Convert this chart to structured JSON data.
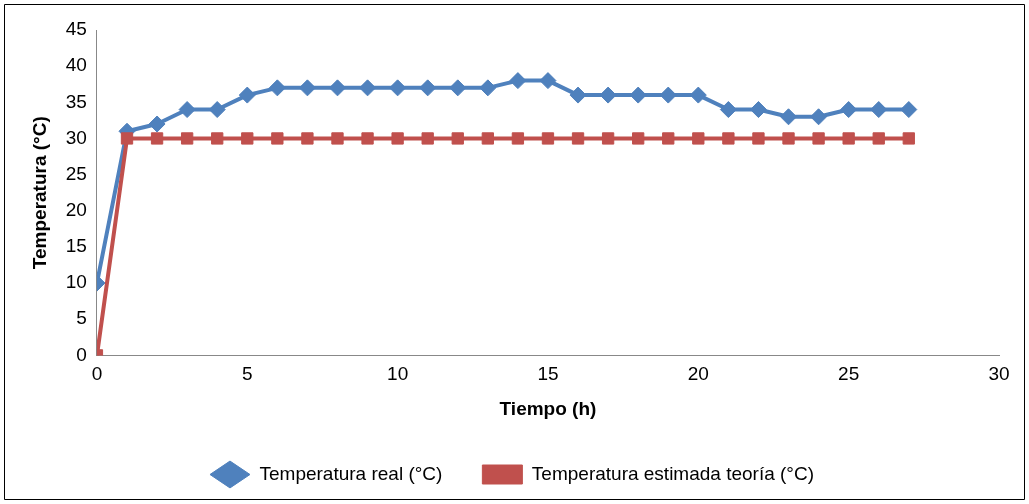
{
  "chart_data": {
    "type": "line",
    "xlabel": "Tiempo (h)",
    "ylabel": "Temperatura (°C)",
    "x": [
      0,
      1,
      2,
      3,
      4,
      5,
      6,
      7,
      8,
      9,
      10,
      11,
      12,
      13,
      14,
      15,
      16,
      17,
      18,
      19,
      20,
      21,
      22,
      23,
      24,
      25,
      26,
      27
    ],
    "series": [
      {
        "name": "Temperatura real (°C)",
        "color": "#4f81bd",
        "marker": "diamond",
        "values": [
          10,
          31,
          32,
          34,
          34,
          36,
          37,
          37,
          37,
          37,
          37,
          37,
          37,
          37,
          38,
          38,
          36,
          36,
          36,
          36,
          36,
          34,
          34,
          33,
          33,
          34,
          34,
          34
        ]
      },
      {
        "name": "Temperatura estimada teoría (°C)",
        "color": "#c0504d",
        "marker": "square",
        "values": [
          0,
          30,
          30,
          30,
          30,
          30,
          30,
          30,
          30,
          30,
          30,
          30,
          30,
          30,
          30,
          30,
          30,
          30,
          30,
          30,
          30,
          30,
          30,
          30,
          30,
          30,
          30,
          30
        ]
      }
    ],
    "xlim": [
      0,
      30
    ],
    "xticks": [
      0,
      5,
      10,
      15,
      20,
      25,
      30
    ],
    "ylim": [
      0,
      45
    ],
    "yticks": [
      0,
      5,
      10,
      15,
      20,
      25,
      30,
      35,
      40,
      45
    ],
    "grid": false,
    "legend": "bottom",
    "line_style": "solid"
  }
}
